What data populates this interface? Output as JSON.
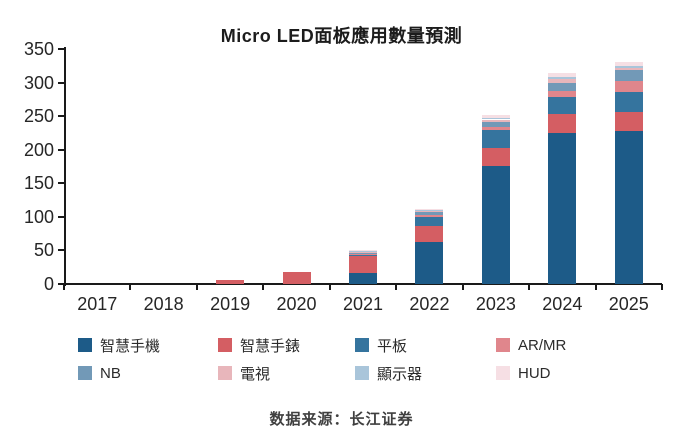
{
  "chart_data": {
    "type": "bar",
    "variant": "stacked",
    "title": "Micro LED面板應用數量預測",
    "source": "数据来源：长江证券",
    "categories": [
      "2017",
      "2018",
      "2019",
      "2020",
      "2021",
      "2022",
      "2023",
      "2024",
      "2025"
    ],
    "series": [
      {
        "name": "智慧手機",
        "color": "#1d5b88",
        "values": [
          0,
          0,
          0,
          0,
          17,
          63,
          176,
          225,
          228
        ]
      },
      {
        "name": "智慧手錶",
        "color": "#d45e63",
        "values": [
          0,
          0,
          6,
          18,
          25,
          23,
          27,
          28,
          28
        ]
      },
      {
        "name": "平板",
        "color": "#35749e",
        "values": [
          0,
          0,
          0,
          0,
          2,
          14,
          26,
          26,
          30
        ]
      },
      {
        "name": "AR/MR",
        "color": "#e0868c",
        "values": [
          0,
          0,
          0,
          0,
          1,
          3,
          5,
          8,
          16
        ]
      },
      {
        "name": "NB",
        "color": "#7299b7",
        "values": [
          0,
          0,
          0,
          0,
          2,
          4,
          8,
          13,
          16
        ]
      },
      {
        "name": "電視",
        "color": "#e8b6bb",
        "values": [
          0,
          0,
          0,
          0,
          1,
          2,
          3,
          5,
          4
        ]
      },
      {
        "name": "顯示器",
        "color": "#a9c5da",
        "values": [
          0,
          0,
          0,
          0,
          1,
          1,
          2,
          3,
          3
        ]
      },
      {
        "name": "HUD",
        "color": "#f6dfe4",
        "values": [
          0,
          0,
          0,
          0,
          1,
          2,
          4,
          6,
          6
        ]
      }
    ],
    "ylim": [
      0,
      350
    ],
    "y_ticks": [
      0,
      50,
      100,
      150,
      200,
      250,
      300,
      350
    ],
    "grid": "off",
    "legend_position": "bottom",
    "legend_columns": 4
  }
}
